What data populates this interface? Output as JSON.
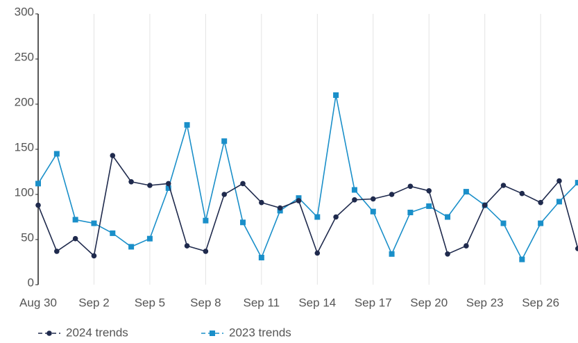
{
  "chart_data": {
    "type": "line",
    "categories": [
      "Aug 30",
      null,
      null,
      "Sep 2",
      null,
      null,
      "Sep 5",
      null,
      null,
      "Sep 8",
      null,
      null,
      "Sep 11",
      null,
      null,
      "Sep 14",
      null,
      null,
      "Sep 17",
      null,
      null,
      "Sep 20",
      null,
      null,
      "Sep 23",
      null,
      null,
      "Sep 26",
      null,
      null
    ],
    "series": [
      {
        "name": "2024 trends",
        "color": "#1f2a4d",
        "marker": "circle",
        "values": [
          88,
          37,
          51,
          32,
          143,
          114,
          110,
          112,
          43,
          37,
          100,
          112,
          91,
          85,
          93,
          35,
          75,
          94,
          95,
          100,
          109,
          104,
          34,
          43,
          88,
          110,
          101,
          91,
          115,
          40
        ]
      },
      {
        "name": "2023 trends",
        "color": "#1a8fc9",
        "marker": "square",
        "values": [
          112,
          145,
          72,
          68,
          57,
          42,
          51,
          107,
          177,
          71,
          159,
          69,
          30,
          82,
          96,
          75,
          210,
          105,
          81,
          34,
          80,
          87,
          75,
          103,
          88,
          68,
          28,
          68,
          92,
          113
        ]
      }
    ],
    "ylim": [
      0,
      300
    ],
    "yticks": [
      0,
      50,
      100,
      150,
      200,
      250,
      300
    ],
    "grid": "x",
    "legend": "bottom-left"
  }
}
